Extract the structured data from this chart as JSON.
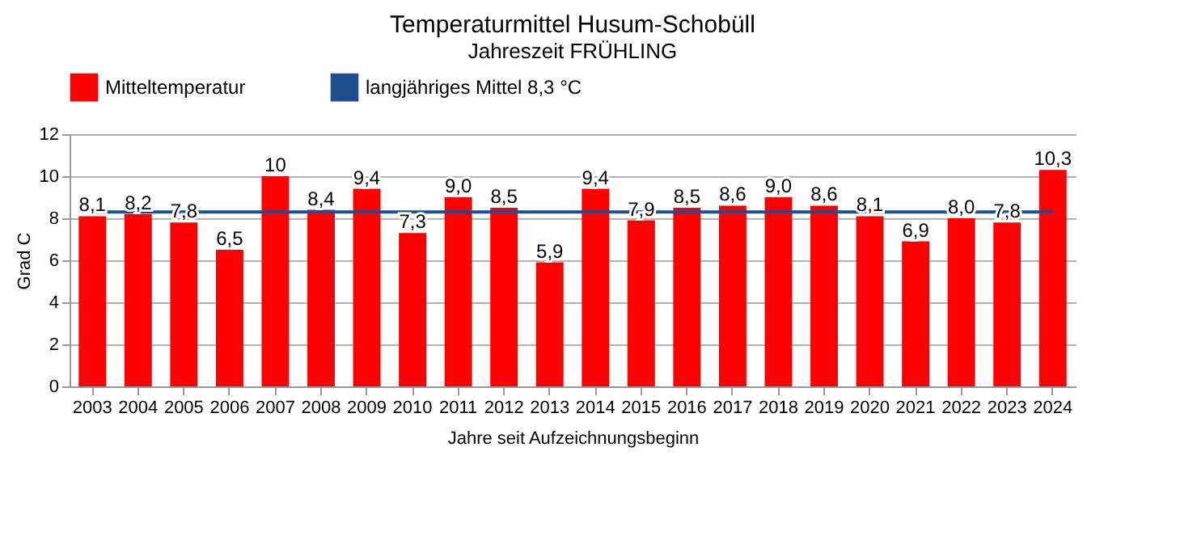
{
  "chart_data": {
    "type": "bar",
    "title": "Temperaturmittel  Husum-Schobüll",
    "subtitle": "Jahreszeit  FRÜHLING",
    "xlabel": "Jahre seit Aufzeichnungsbeginn",
    "ylabel": "Grad C",
    "categories": [
      "2003",
      "2004",
      "2005",
      "2006",
      "2007",
      "2008",
      "2009",
      "2010",
      "2011",
      "2012",
      "2013",
      "2014",
      "2015",
      "2016",
      "2017",
      "2018",
      "2019",
      "2020",
      "2021",
      "2022",
      "2023",
      "2024"
    ],
    "series": [
      {
        "name": "Mitteltemperatur",
        "color": "#ff0000",
        "values": [
          8.1,
          8.2,
          7.8,
          6.5,
          10,
          8.4,
          9.4,
          7.3,
          9.0,
          8.5,
          5.9,
          9.4,
          7.9,
          8.5,
          8.6,
          9.0,
          8.6,
          8.1,
          6.9,
          8.0,
          7.8,
          10.3
        ],
        "value_labels": [
          "8,1",
          "8,2",
          "7,8",
          "6,5",
          "10",
          "8,4",
          "9,4",
          "7,3",
          "9,0",
          "8,5",
          "5,9",
          "9,4",
          "7,9",
          "8,5",
          "8,6",
          "9,0",
          "8,6",
          "8,1",
          "6,9",
          "8,0",
          "7,8",
          "10,3"
        ]
      },
      {
        "name": "langjähriges Mittel 8,3 °C",
        "type": "line",
        "color": "#1f4e8c",
        "values": [
          8.3,
          8.3,
          8.3,
          8.3,
          8.3,
          8.3,
          8.3,
          8.3,
          8.3,
          8.3,
          8.3,
          8.3,
          8.3,
          8.3,
          8.3,
          8.3,
          8.3,
          8.3,
          8.3,
          8.3,
          8.3,
          8.3
        ]
      }
    ],
    "ylim": [
      0,
      12
    ],
    "yticks": [
      0,
      2,
      4,
      6,
      8,
      10,
      12
    ],
    "grid": "y",
    "legend": "top"
  }
}
